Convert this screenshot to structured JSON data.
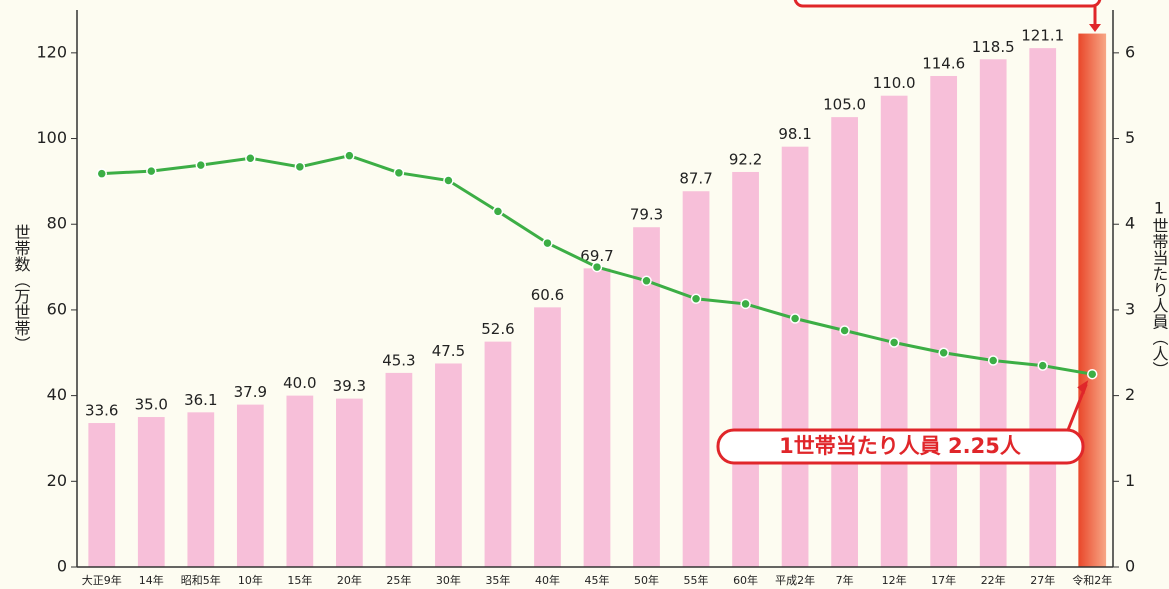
{
  "chart_data": {
    "type": "bar",
    "categories": [
      "大正9年",
      "14年",
      "昭和5年",
      "10年",
      "15年",
      "20年",
      "25年",
      "30年",
      "35年",
      "40年",
      "45年",
      "50年",
      "55年",
      "60年",
      "平成2年",
      "7年",
      "12年",
      "17年",
      "22年",
      "27年",
      "令和2年"
    ],
    "series": [
      {
        "type": "bar",
        "color": "#f7bfd9",
        "highlight_color": "#ec5a35",
        "values": [
          33.6,
          35,
          36.1,
          37.9,
          40,
          39.3,
          45.3,
          47.5,
          52.6,
          60.6,
          69.7,
          79.3,
          87.7,
          92.2,
          98.1,
          105,
          110,
          114.6,
          118.5,
          121.1,
          124.5
        ],
        "value_labels": [
          "33.6",
          "35.0",
          "36.1",
          "37.9",
          "40.0",
          "39.3",
          "45.3",
          "47.5",
          "52.6",
          "60.6",
          "69.7",
          "79.3",
          "87.7",
          "92.2",
          "98.1",
          "105.0",
          "110.0",
          "114.6",
          "118.5",
          "121.1",
          null
        ]
      },
      {
        "type": "line",
        "axis": "y2",
        "color": "#3cae45",
        "values": [
          4.59,
          4.62,
          4.69,
          4.77,
          4.67,
          4.8,
          4.6,
          4.51,
          4.15,
          3.78,
          3.5,
          3.34,
          3.13,
          3.07,
          2.9,
          2.76,
          2.62,
          2.5,
          2.41,
          2.35,
          2.25
        ]
      }
    ],
    "ylabel": "世帯数（万世帯）",
    "y2label": "1世帯当たり人員（人）",
    "ylim": [
      0,
      130
    ],
    "yticks": [
      0,
      20,
      40,
      60,
      80,
      100,
      120
    ],
    "y2lim": [
      0,
      6.5
    ],
    "y2ticks": [
      0,
      1,
      2,
      3,
      4,
      5,
      6
    ],
    "annotation": "1世帯当たり人員 2.25人"
  }
}
